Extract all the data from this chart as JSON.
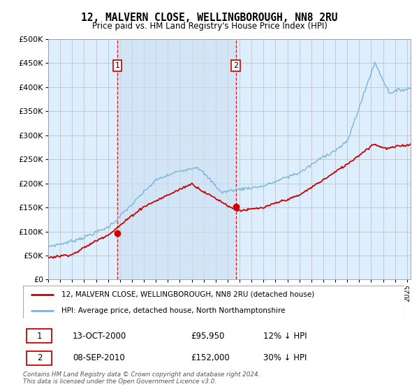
{
  "title": "12, MALVERN CLOSE, WELLINGBOROUGH, NN8 2RU",
  "subtitle": "Price paid vs. HM Land Registry's House Price Index (HPI)",
  "legend_line1": "12, MALVERN CLOSE, WELLINGBOROUGH, NN8 2RU (detached house)",
  "legend_line2": "HPI: Average price, detached house, North Northamptonshire",
  "footnote": "Contains HM Land Registry data © Crown copyright and database right 2024.\nThis data is licensed under the Open Government Licence v3.0.",
  "transaction1_date": "13-OCT-2000",
  "transaction1_price": "£95,950",
  "transaction1_hpi": "12% ↓ HPI",
  "transaction2_date": "08-SEP-2010",
  "transaction2_price": "£152,000",
  "transaction2_hpi": "30% ↓ HPI",
  "hpi_color": "#7ab4d8",
  "price_color": "#cc0000",
  "bg_color": "#ddeeff",
  "shade_color": "#ccddf0",
  "ylim": [
    0,
    500000
  ],
  "yticks": [
    0,
    50000,
    100000,
    150000,
    200000,
    250000,
    300000,
    350000,
    400000,
    450000,
    500000
  ],
  "marker1_x": 2000.79,
  "marker1_y": 95950,
  "marker2_x": 2010.69,
  "marker2_y": 152000,
  "vline1_x": 2000.79,
  "vline2_x": 2010.69,
  "xmin": 1995.0,
  "xmax": 2025.3
}
